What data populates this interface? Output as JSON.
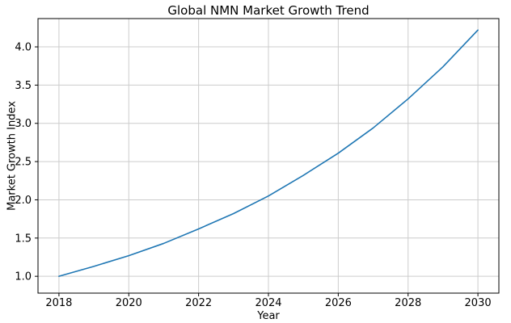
{
  "figure": {
    "title": "Global NMN Market Growth Trend",
    "xlabel": "Year",
    "ylabel": "Market Growth Index"
  },
  "chart_data": {
    "type": "line",
    "title": "Global NMN Market Growth Trend",
    "xlabel": "Year",
    "ylabel": "Market Growth Index",
    "x": [
      2018,
      2019,
      2020,
      2021,
      2022,
      2023,
      2024,
      2025,
      2026,
      2027,
      2028,
      2029,
      2030
    ],
    "series": [
      {
        "name": "Market Growth Index",
        "values": [
          1.0,
          1.13,
          1.27,
          1.43,
          1.62,
          1.82,
          2.05,
          2.32,
          2.61,
          2.94,
          3.32,
          3.74,
          4.22
        ]
      }
    ],
    "xticks": [
      2018,
      2020,
      2022,
      2024,
      2026,
      2028,
      2030
    ],
    "yticks": [
      1.0,
      1.5,
      2.0,
      2.5,
      3.0,
      3.5,
      4.0
    ],
    "xlim": [
      2017.4,
      2030.6
    ],
    "ylim": [
      0.78,
      4.37
    ],
    "grid": true,
    "legend": "none",
    "line_color": "#1f77b4",
    "grid_color": "#cccccc",
    "spine_color": "#000000",
    "background": "#ffffff"
  }
}
